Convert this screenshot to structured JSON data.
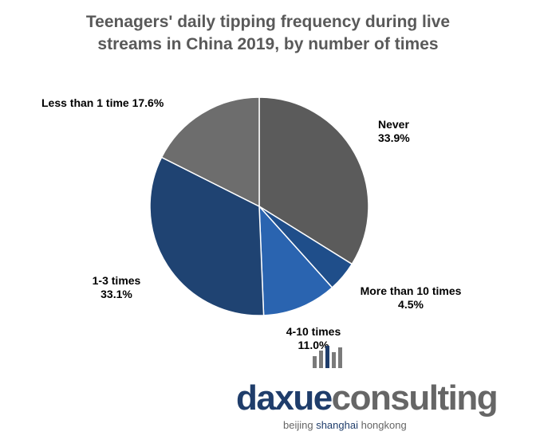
{
  "chart_data": {
    "type": "pie",
    "title_lines": [
      "Teenagers' daily tipping frequency during live",
      "streams in China 2019, by number of times"
    ],
    "slices": [
      {
        "label": "Never",
        "value": 33.9,
        "display": "33.9%",
        "color": "#5b5b5b"
      },
      {
        "label": "More than 10 times",
        "value": 4.5,
        "display": "4.5%",
        "color": "#1f4e8a"
      },
      {
        "label": "4-10 times",
        "value": 11.0,
        "display": "11.0%",
        "color": "#2a64b0"
      },
      {
        "label": "1-3 times",
        "value": 33.1,
        "display": "33.1%",
        "color": "#1f4372"
      },
      {
        "label": "Less than 1 time",
        "value": 17.6,
        "display": "17.6%",
        "color": "#6d6d6d"
      }
    ],
    "start": "top",
    "direction": "clockwise"
  },
  "logo": {
    "part1": "daxue",
    "part2": "consulting",
    "sub1": "beijing ",
    "sub2": "shanghai",
    "sub3": " hongkong"
  }
}
